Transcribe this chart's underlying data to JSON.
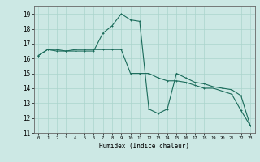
{
  "xlabel": "Humidex (Indice chaleur)",
  "bg_color": "#cce8e4",
  "grid_color": "#aad4cc",
  "line_color": "#1a6b5a",
  "line1_x": [
    0,
    1,
    2,
    3,
    4,
    5,
    6,
    7,
    8,
    9,
    10,
    11,
    12,
    13,
    14,
    15,
    16,
    17,
    18,
    19,
    20,
    21,
    22,
    23
  ],
  "line1_y": [
    16.2,
    16.6,
    16.6,
    16.5,
    16.6,
    16.6,
    16.6,
    16.6,
    16.6,
    16.6,
    15.0,
    15.0,
    15.0,
    14.7,
    14.5,
    14.5,
    14.4,
    14.2,
    14.0,
    14.0,
    13.8,
    13.6,
    12.5,
    11.5
  ],
  "line2_x": [
    0,
    1,
    2,
    3,
    4,
    5,
    6,
    7,
    8,
    9,
    10,
    11,
    12,
    13,
    14,
    15,
    16,
    17,
    18,
    19,
    20,
    21,
    22,
    23
  ],
  "line2_y": [
    16.2,
    16.6,
    16.5,
    16.5,
    16.5,
    16.5,
    16.5,
    17.7,
    18.2,
    19.0,
    18.6,
    18.5,
    12.6,
    12.3,
    12.6,
    15.0,
    14.7,
    14.4,
    14.3,
    14.1,
    14.0,
    13.9,
    13.5,
    11.5
  ],
  "xlim": [
    -0.5,
    23.5
  ],
  "ylim": [
    11,
    19.5
  ],
  "yticks": [
    11,
    12,
    13,
    14,
    15,
    16,
    17,
    18,
    19
  ],
  "xticks": [
    0,
    1,
    2,
    3,
    4,
    5,
    6,
    7,
    8,
    9,
    10,
    11,
    12,
    13,
    14,
    15,
    16,
    17,
    18,
    19,
    20,
    21,
    22,
    23
  ]
}
